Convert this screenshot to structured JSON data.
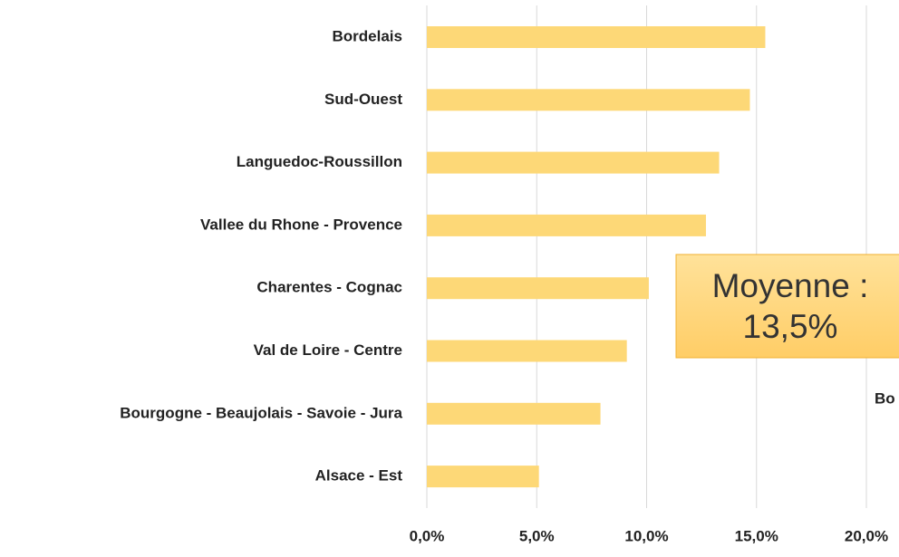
{
  "chart_data": {
    "type": "barh",
    "categories": [
      "Bordelais",
      "Sud-Ouest",
      "Languedoc-Roussillon",
      "Vallee du Rhone - Provence",
      "Charentes - Cognac",
      "Val de Loire - Centre",
      "Bourgogne - Beaujolais - Savoie - Jura",
      "Alsace - Est"
    ],
    "values": [
      15.4,
      14.7,
      13.3,
      12.7,
      10.1,
      9.1,
      7.9,
      5.1
    ],
    "color": "#fdd877",
    "xlim": [
      0,
      20
    ],
    "xticks": [
      {
        "value": 0,
        "label": "0,0%"
      },
      {
        "value": 5,
        "label": "5,0%"
      },
      {
        "value": 10,
        "label": "10,0%"
      },
      {
        "value": 15,
        "label": "15,0%"
      },
      {
        "value": 20,
        "label": "20,0%"
      }
    ],
    "grid": true,
    "annotations": [
      "Moyenne :",
      "13,5%"
    ],
    "cropped_label": "Bo"
  }
}
